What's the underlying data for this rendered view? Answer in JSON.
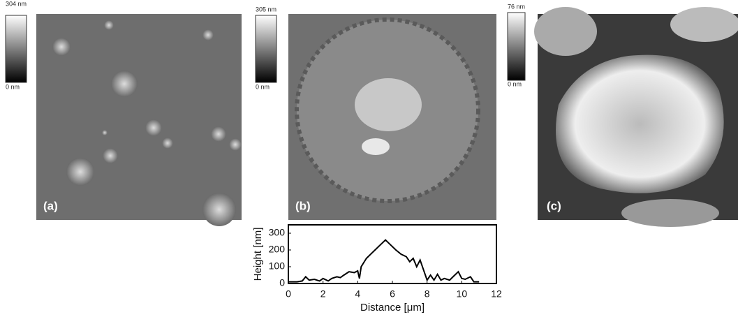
{
  "panels": [
    {
      "label": "(a)",
      "scale_max": "304 nm",
      "scale_min": "0 nm"
    },
    {
      "label": "(b)",
      "scale_max": "305 nm",
      "scale_min": "0 nm"
    },
    {
      "label": "(c)",
      "scale_max": "76 nm",
      "scale_min": "0 nm"
    }
  ],
  "chart_data": {
    "type": "line",
    "x_label": "Distance [μm]",
    "y_label": "Height [nm]",
    "x": [
      0,
      0.5,
      0.8,
      1.0,
      1.2,
      1.5,
      1.8,
      2.0,
      2.3,
      2.5,
      2.8,
      3.0,
      3.2,
      3.5,
      3.8,
      4.0,
      4.1,
      4.2,
      4.5,
      4.8,
      5.0,
      5.3,
      5.6,
      5.9,
      6.2,
      6.5,
      6.8,
      7.0,
      7.2,
      7.4,
      7.6,
      7.8,
      8.0,
      8.2,
      8.4,
      8.6,
      8.8,
      9.0,
      9.3,
      9.5,
      9.8,
      10.0,
      10.2,
      10.5,
      10.7,
      11.0
    ],
    "values": [
      10,
      10,
      15,
      40,
      20,
      25,
      15,
      30,
      15,
      30,
      40,
      35,
      50,
      70,
      65,
      75,
      30,
      100,
      150,
      180,
      200,
      230,
      260,
      230,
      200,
      175,
      160,
      130,
      150,
      100,
      140,
      80,
      20,
      50,
      20,
      55,
      20,
      30,
      20,
      40,
      70,
      30,
      25,
      40,
      10,
      10
    ],
    "color": "#000000",
    "xlim": [
      0,
      12
    ],
    "xticks": [
      0,
      2,
      4,
      6,
      8,
      10,
      12
    ],
    "ylim": [
      0,
      350
    ],
    "yticks": [
      0,
      100,
      200,
      300
    ]
  }
}
